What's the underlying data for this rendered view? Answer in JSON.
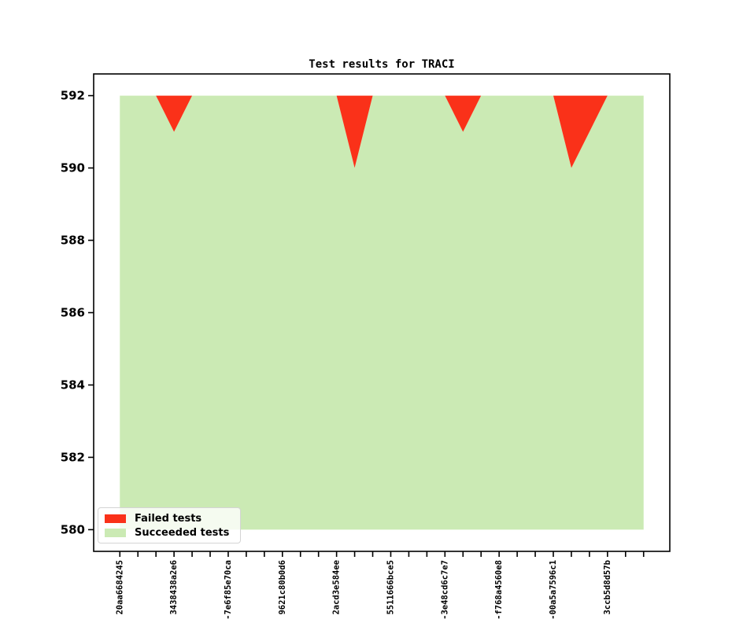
{
  "figure": {
    "background": "#ffffff"
  },
  "chart_data": {
    "type": "area",
    "title": "Test results for TRACI",
    "total_tests": 592,
    "n_points": 30,
    "x_label_every": 3,
    "x_tick_labels": [
      "20aa6684245",
      "3438438a2e6",
      "-7e6f85e70ca",
      "9621c80b0d6",
      "2acd3e584ee",
      "5511666bce5",
      "-3e48cd6c7e7",
      "-f768a4560e8",
      "-00a5a7596c1",
      "3ccb5d8d57b"
    ],
    "series": [
      {
        "name": "Failed tests",
        "color": "#fa3119",
        "values": [
          0,
          0,
          0,
          1,
          0,
          0,
          0,
          0,
          0,
          0,
          0,
          0,
          0,
          2,
          0,
          0,
          0,
          0,
          0,
          1,
          0,
          0,
          0,
          0,
          0,
          2,
          1,
          0,
          0,
          0
        ]
      },
      {
        "name": "Succeeded tests",
        "color": "#cbeab4",
        "values": [
          592,
          592,
          592,
          591,
          592,
          592,
          592,
          592,
          592,
          592,
          592,
          592,
          592,
          590,
          592,
          592,
          592,
          592,
          592,
          591,
          592,
          592,
          592,
          592,
          592,
          590,
          591,
          592,
          592,
          592
        ]
      }
    ],
    "yticks": [
      580,
      582,
      584,
      586,
      588,
      590,
      592
    ],
    "ylim": [
      579.4,
      592.6
    ],
    "xlim": [
      -1.45,
      30.45
    ],
    "area_base": 580,
    "grid": false,
    "legend_position": "lower left",
    "axis_color": "#000000"
  }
}
